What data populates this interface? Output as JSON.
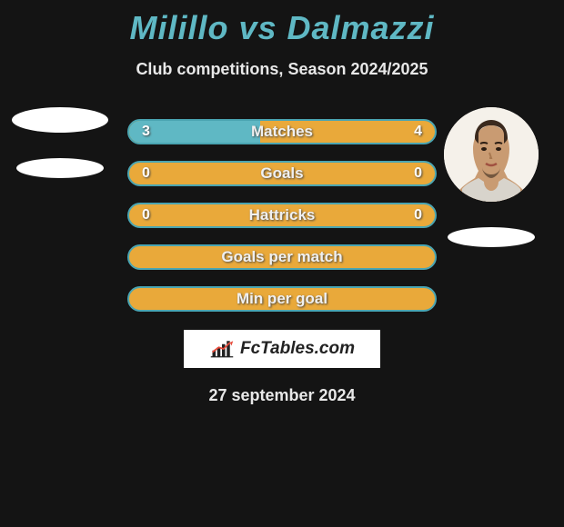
{
  "title": "Milillo vs Dalmazzi",
  "subtitle": "Club competitions, Season 2024/2025",
  "colors": {
    "teal": "#5fb8c4",
    "orange": "#e9a93a",
    "row_border": "#4aa5b2",
    "bg": "#141414"
  },
  "rows": [
    {
      "label": "Matches",
      "left": "3",
      "right": "4",
      "left_pct": 42.9,
      "right_pct": 57.1,
      "show_vals": true
    },
    {
      "label": "Goals",
      "left": "0",
      "right": "0",
      "left_pct": 0,
      "right_pct": 0,
      "show_vals": true
    },
    {
      "label": "Hattricks",
      "left": "0",
      "right": "0",
      "left_pct": 0,
      "right_pct": 0,
      "show_vals": true
    },
    {
      "label": "Goals per match",
      "left": "",
      "right": "",
      "left_pct": 0,
      "right_pct": 0,
      "show_vals": false
    },
    {
      "label": "Min per goal",
      "left": "",
      "right": "",
      "left_pct": 0,
      "right_pct": 0,
      "show_vals": false
    }
  ],
  "brand": "FcTables.com",
  "date": "27 september 2024"
}
